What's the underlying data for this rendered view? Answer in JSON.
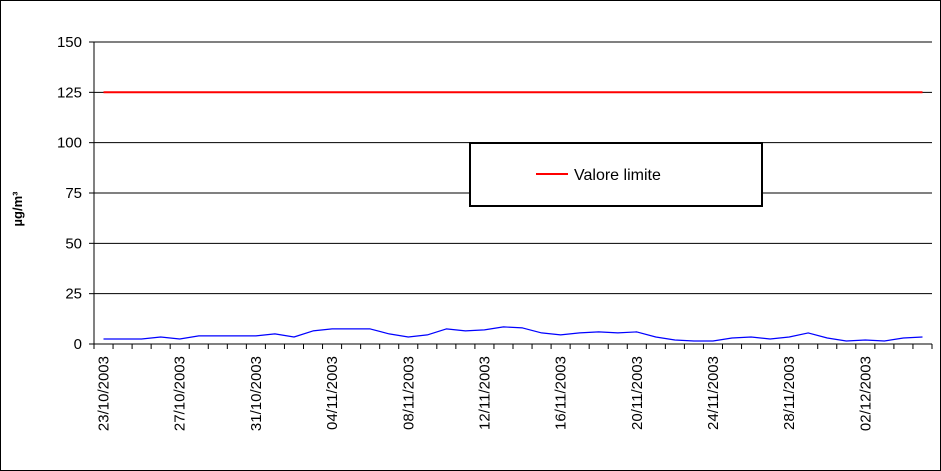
{
  "chart_data": {
    "type": "line",
    "title": "",
    "xlabel": "",
    "ylabel": "µg/m³",
    "ylim": [
      0,
      150
    ],
    "yticks": [
      0,
      25,
      50,
      75,
      100,
      125,
      150
    ],
    "grid": "horizontal",
    "legend_position": "center-right",
    "x_tick_labels": [
      "23/10/2003",
      "27/10/2003",
      "31/10/2003",
      "04/11/2003",
      "08/11/2003",
      "12/11/2003",
      "16/11/2003",
      "20/11/2003",
      "24/11/2003",
      "28/11/2003",
      "02/12/2003"
    ],
    "x": [
      "23/10/2003",
      "24/10/2003",
      "25/10/2003",
      "26/10/2003",
      "27/10/2003",
      "28/10/2003",
      "29/10/2003",
      "30/10/2003",
      "31/10/2003",
      "01/11/2003",
      "02/11/2003",
      "03/11/2003",
      "04/11/2003",
      "05/11/2003",
      "06/11/2003",
      "07/11/2003",
      "08/11/2003",
      "09/11/2003",
      "10/11/2003",
      "11/11/2003",
      "12/11/2003",
      "13/11/2003",
      "14/11/2003",
      "15/11/2003",
      "16/11/2003",
      "17/11/2003",
      "18/11/2003",
      "19/11/2003",
      "20/11/2003",
      "21/11/2003",
      "22/11/2003",
      "23/11/2003",
      "24/11/2003",
      "25/11/2003",
      "26/11/2003",
      "27/11/2003",
      "28/11/2003",
      "29/11/2003",
      "30/11/2003",
      "01/12/2003",
      "02/12/2003",
      "03/12/2003",
      "04/12/2003",
      "05/12/2003"
    ],
    "series": [
      {
        "name": "",
        "color": "#0000ff",
        "values": [
          2.5,
          2.5,
          2.5,
          3.5,
          2.5,
          4.0,
          4.0,
          4.0,
          4.0,
          5.0,
          3.5,
          6.5,
          7.5,
          7.5,
          7.5,
          5.0,
          3.5,
          4.5,
          7.5,
          6.5,
          7.0,
          8.5,
          8.0,
          5.5,
          4.5,
          5.5,
          6.0,
          5.5,
          6.0,
          3.5,
          2.0,
          1.5,
          1.5,
          3.0,
          3.5,
          2.5,
          3.5,
          5.5,
          3.0,
          1.5,
          2.0,
          1.5,
          3.0,
          3.5
        ]
      },
      {
        "name": "Valore limite",
        "color": "#ff0000",
        "values": [
          125,
          125,
          125,
          125,
          125,
          125,
          125,
          125,
          125,
          125,
          125,
          125,
          125,
          125,
          125,
          125,
          125,
          125,
          125,
          125,
          125,
          125,
          125,
          125,
          125,
          125,
          125,
          125,
          125,
          125,
          125,
          125,
          125,
          125,
          125,
          125,
          125,
          125,
          125,
          125,
          125,
          125,
          125,
          125
        ]
      }
    ],
    "legend": [
      "Valore limite"
    ]
  }
}
